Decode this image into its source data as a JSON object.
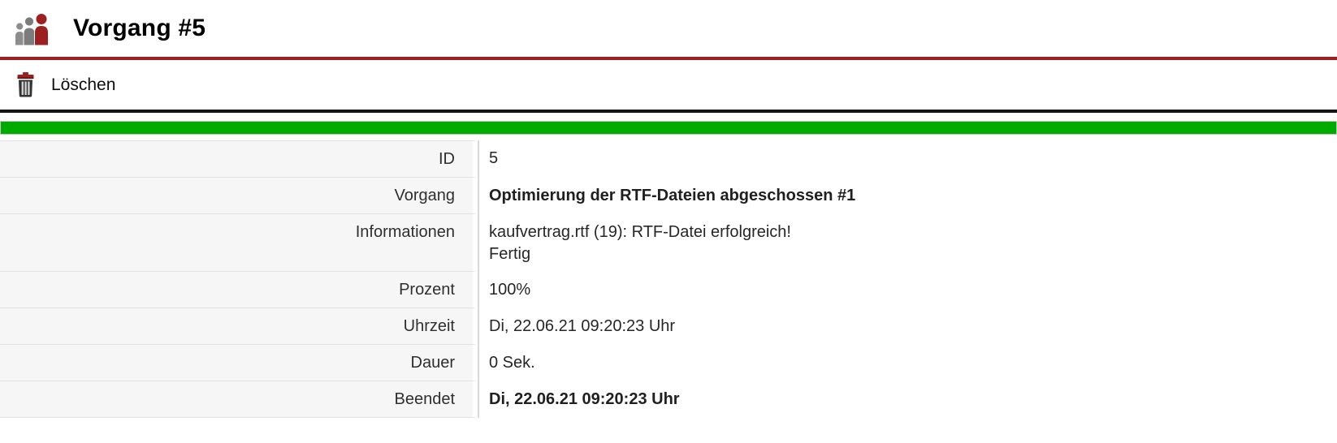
{
  "header": {
    "title": "Vorgang #5",
    "icon": "users-icon"
  },
  "toolbar": {
    "delete_label": "Löschen",
    "delete_icon": "trash-icon"
  },
  "progress": {
    "percent": 100,
    "color": "#00ab00"
  },
  "details": {
    "rows": [
      {
        "label": "ID",
        "value": "5"
      },
      {
        "label": "Vorgang",
        "value": "Optimierung der RTF-Dateien abgeschossen #1",
        "bold": true
      },
      {
        "label": "Informationen",
        "value": "kaufvertrag.rtf (19): RTF-Datei erfolgreich!\nFertig"
      },
      {
        "label": "Prozent",
        "value": "100%"
      },
      {
        "label": "Uhrzeit",
        "value": "Di, 22.06.21 09:20:23 Uhr"
      },
      {
        "label": "Dauer",
        "value": "0 Sek."
      },
      {
        "label": "Beendet",
        "value": "Di, 22.06.21 09:20:23 Uhr",
        "bold": true
      }
    ]
  },
  "colors": {
    "accent_red": "#9d1f1f",
    "progress_green": "#00ab00",
    "divider_black": "#141414"
  }
}
